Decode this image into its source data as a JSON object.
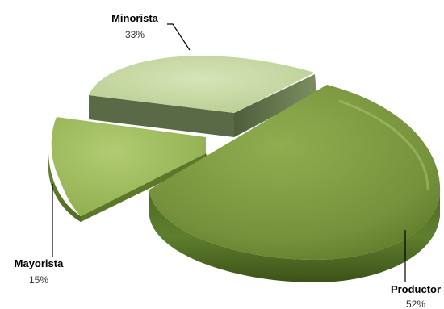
{
  "chart_data": {
    "type": "pie",
    "title": "",
    "labels": [
      "Productor",
      "Minorista",
      "Mayorista"
    ],
    "values": [
      52,
      33,
      15
    ],
    "value_labels": [
      "52%",
      "33%",
      "15%"
    ],
    "colors": {
      "Productor": "#76923c",
      "Minorista": "#c3d69b",
      "Mayorista": "#9bbb59"
    },
    "exploded": true,
    "style": "3d",
    "legend": "none"
  }
}
